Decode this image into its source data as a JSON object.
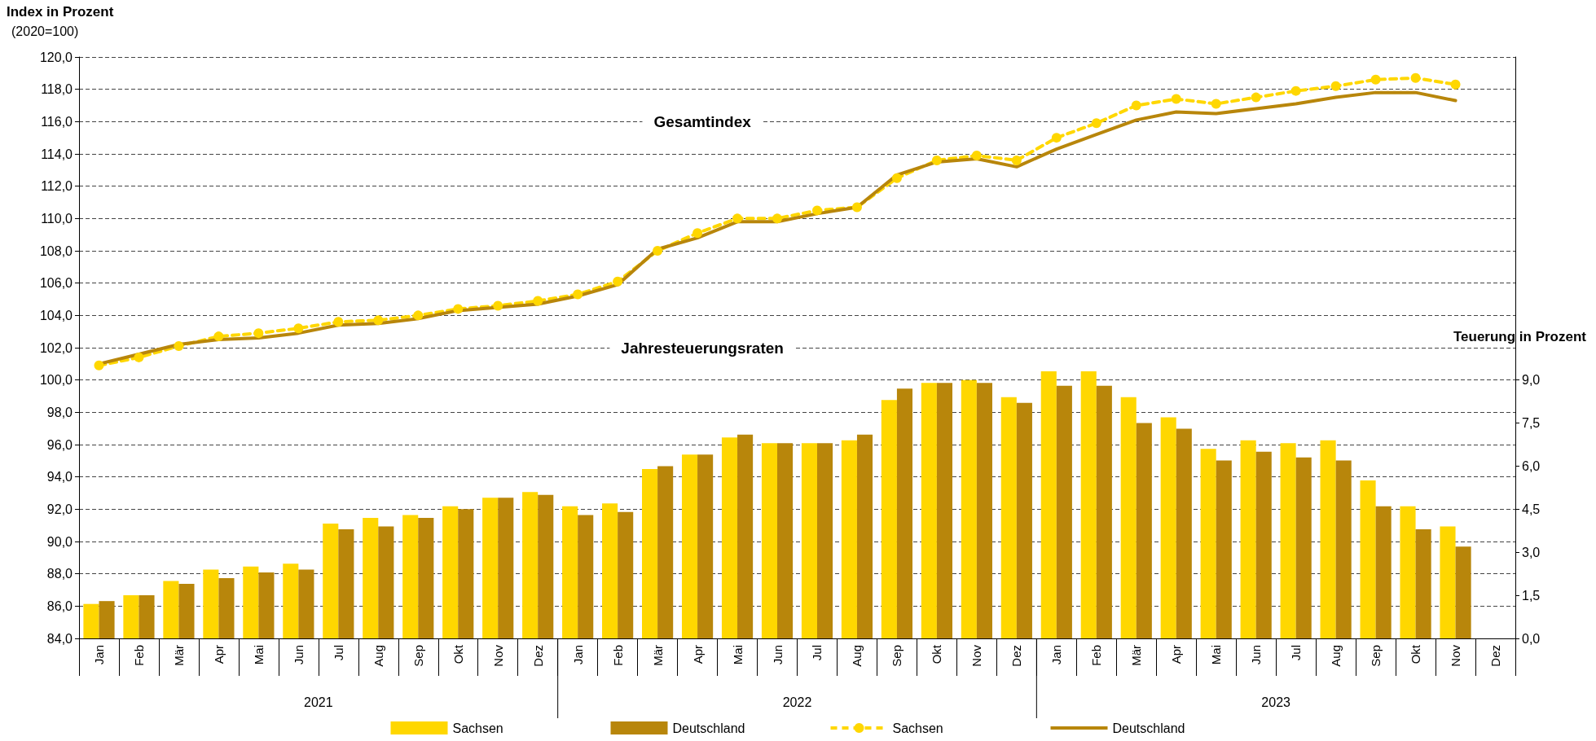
{
  "chart_data": {
    "type": "bar",
    "ylabel": "Index in Prozent",
    "y2label": "Teuerung in Prozent",
    "annotations": [
      "(2020=100)",
      "Gesamtindex",
      "Jahresteuerungsraten",
      "2021",
      "2022",
      "2023"
    ],
    "categories": [
      "Jan",
      "Feb",
      "Mär",
      "Apr",
      "Mai",
      "Jun",
      "Jul",
      "Aug",
      "Sep",
      "Okt",
      "Nov",
      "Dez",
      "Jan",
      "Feb",
      "Mär",
      "Apr",
      "Mai",
      "Jun",
      "Jul",
      "Aug",
      "Sep",
      "Okt",
      "Nov",
      "Dez",
      "Jan",
      "Feb",
      "Mär",
      "Apr",
      "Mai",
      "Jun",
      "Jul",
      "Aug",
      "Sep",
      "Okt",
      "Nov",
      "Dez"
    ],
    "series": [
      {
        "name": "Sachsen",
        "axis": "y2",
        "color": "#ffd700",
        "values": [
          1.2,
          1.5,
          2.0,
          2.4,
          2.5,
          2.6,
          4.0,
          4.2,
          4.3,
          4.6,
          4.9,
          5.1,
          4.6,
          4.7,
          5.9,
          6.4,
          7.0,
          6.8,
          6.8,
          6.9,
          8.3,
          8.9,
          9.0,
          8.4,
          9.3,
          9.3,
          8.4,
          7.7,
          6.6,
          6.9,
          6.8,
          6.9,
          5.5,
          4.6,
          3.9,
          null
        ]
      },
      {
        "name": "Deutschland",
        "axis": "y2",
        "color": "#b8860b",
        "values": [
          1.3,
          1.5,
          1.9,
          2.1,
          2.3,
          2.4,
          3.8,
          3.9,
          4.2,
          4.5,
          4.9,
          5.0,
          4.3,
          4.4,
          6.0,
          6.4,
          7.1,
          6.8,
          6.8,
          7.1,
          8.7,
          8.9,
          8.9,
          8.2,
          8.8,
          8.8,
          7.5,
          7.3,
          6.2,
          6.5,
          6.3,
          6.2,
          4.6,
          3.8,
          3.2,
          null
        ]
      },
      {
        "name": "Sachsen",
        "type": "line",
        "color": "#ffd700",
        "marker": "circle",
        "line_style": "dashed",
        "values": [
          100.9,
          101.4,
          102.1,
          102.7,
          102.9,
          103.2,
          103.6,
          103.7,
          104.0,
          104.4,
          104.6,
          104.9,
          105.3,
          106.1,
          108.0,
          109.1,
          110.0,
          110.0,
          110.5,
          110.7,
          112.5,
          113.6,
          113.9,
          113.6,
          115.0,
          115.9,
          117.0,
          117.4,
          117.1,
          117.5,
          117.9,
          118.2,
          118.6,
          118.7,
          118.3,
          null
        ]
      },
      {
        "name": "Deutschland",
        "type": "line",
        "color": "#b8860b",
        "marker": "none",
        "line_style": "solid",
        "values": [
          101.0,
          101.6,
          102.2,
          102.5,
          102.6,
          102.9,
          103.4,
          103.5,
          103.8,
          104.3,
          104.5,
          104.7,
          105.2,
          105.9,
          108.1,
          108.8,
          109.8,
          109.8,
          110.3,
          110.7,
          112.7,
          113.5,
          113.7,
          113.2,
          114.3,
          115.2,
          116.1,
          116.6,
          116.5,
          116.8,
          117.1,
          117.5,
          117.8,
          117.8,
          117.3,
          null
        ]
      }
    ],
    "ylim": [
      84,
      120
    ],
    "yticks": [
      {
        "value": 84,
        "label": "84,0"
      },
      {
        "value": 86,
        "label": "86,0"
      },
      {
        "value": 88,
        "label": "88,0"
      },
      {
        "value": 90,
        "label": "90,0"
      },
      {
        "value": 92,
        "label": "92,0"
      },
      {
        "value": 94,
        "label": "94,0"
      },
      {
        "value": 96,
        "label": "96,0"
      },
      {
        "value": 98,
        "label": "98,0"
      },
      {
        "value": 100,
        "label": "100,0"
      },
      {
        "value": 102,
        "label": "102,0"
      },
      {
        "value": 104,
        "label": "104,0"
      },
      {
        "value": 106,
        "label": "106,0"
      },
      {
        "value": 108,
        "label": "108,0"
      },
      {
        "value": 110,
        "label": "110,0"
      },
      {
        "value": 112,
        "label": "112,0"
      },
      {
        "value": 114,
        "label": "114,0"
      },
      {
        "value": 116,
        "label": "116,0"
      },
      {
        "value": 118,
        "label": "118,0"
      },
      {
        "value": 120,
        "label": "120,0"
      }
    ],
    "y2lim": [
      0,
      20.25
    ],
    "y2ticks": [
      {
        "value": 0,
        "label": "0,0"
      },
      {
        "value": 1.5,
        "label": "1,5"
      },
      {
        "value": 3,
        "label": "3,0"
      },
      {
        "value": 4.5,
        "label": "4,5"
      },
      {
        "value": 6,
        "label": "6,0"
      },
      {
        "value": 7.5,
        "label": "7,5"
      },
      {
        "value": 9,
        "label": "9,0"
      }
    ],
    "grid": "y",
    "legend": "bottom"
  }
}
